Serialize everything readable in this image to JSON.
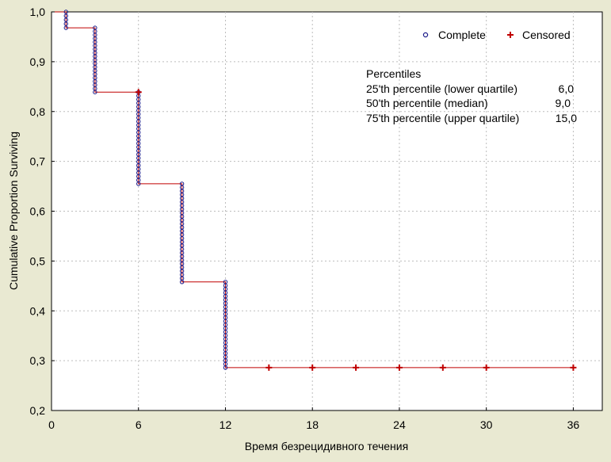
{
  "chart_data": {
    "type": "line",
    "title": "",
    "xlabel": "Время безрецидивного течения",
    "ylabel": "Cumulative Proportion Surviving",
    "xlim": [
      0,
      38
    ],
    "ylim": [
      0.2,
      1.0
    ],
    "x_ticks": [
      0,
      6,
      12,
      18,
      24,
      30,
      36
    ],
    "y_ticks": [
      0.2,
      0.3,
      0.4,
      0.5,
      0.6,
      0.7,
      0.8,
      0.9,
      1.0
    ],
    "y_tick_labels": [
      "0,2",
      "0,3",
      "0,4",
      "0,5",
      "0,6",
      "0,7",
      "0,8",
      "0,9",
      "1,0"
    ],
    "grid": true,
    "legend_position": "top-right",
    "colors": {
      "line": "#c00000",
      "complete": "#1b1b8a",
      "censored": "#c00000",
      "plot_bg": "#ffffff",
      "page_bg": "#e9e9d2",
      "grid": "#bdbdbd"
    },
    "series": [
      {
        "name": "Complete",
        "marker": "circle",
        "steps": [
          {
            "x": 1,
            "y_from": 1.0,
            "y_to": 0.968
          },
          {
            "x": 3,
            "y_from": 0.968,
            "y_to": 0.839
          },
          {
            "x": 6,
            "y_from": 0.839,
            "y_to": 0.655
          },
          {
            "x": 9,
            "y_from": 0.655,
            "y_to": 0.458
          },
          {
            "x": 12,
            "y_from": 0.458,
            "y_to": 0.286
          }
        ]
      },
      {
        "name": "Censored",
        "marker": "plus",
        "points": [
          {
            "x": 6,
            "y": 0.839
          },
          {
            "x": 15,
            "y": 0.286
          },
          {
            "x": 18,
            "y": 0.286
          },
          {
            "x": 21,
            "y": 0.286
          },
          {
            "x": 24,
            "y": 0.286
          },
          {
            "x": 27,
            "y": 0.286
          },
          {
            "x": 30,
            "y": 0.286
          },
          {
            "x": 36,
            "y": 0.286
          }
        ]
      }
    ],
    "survival_curve": [
      {
        "x": 0,
        "y": 1.0
      },
      {
        "x": 1,
        "y": 0.968
      },
      {
        "x": 3,
        "y": 0.839
      },
      {
        "x": 6,
        "y": 0.655
      },
      {
        "x": 9,
        "y": 0.458
      },
      {
        "x": 12,
        "y": 0.286
      },
      {
        "x": 36,
        "y": 0.286
      }
    ],
    "annotation": {
      "heading": "Percentiles",
      "rows": [
        {
          "label": "25'th percentile (lower quartile)",
          "value": "6,0"
        },
        {
          "label": "50'th percentile (median)",
          "value": "9,0"
        },
        {
          "label": "75'th percentile (upper quartile)",
          "value": "15,0"
        }
      ]
    }
  }
}
